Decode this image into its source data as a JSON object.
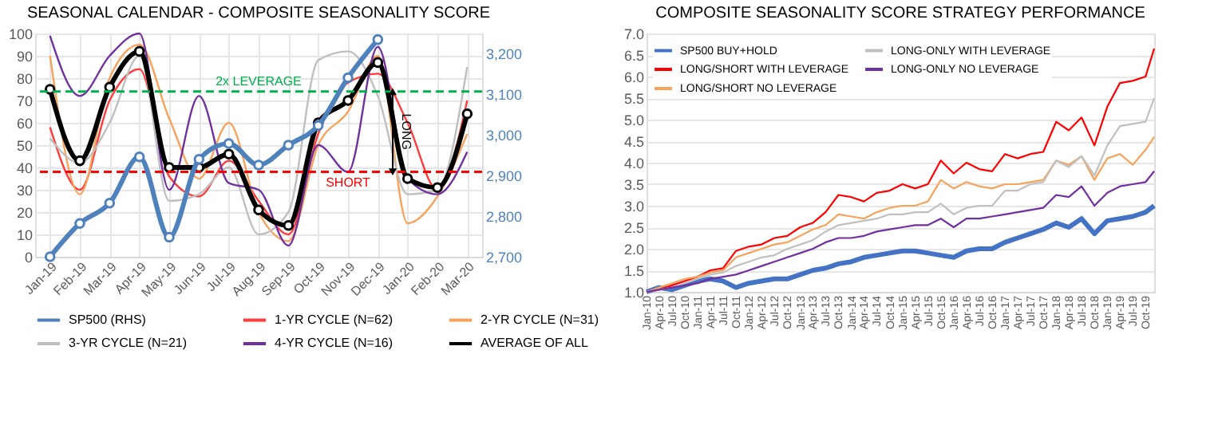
{
  "chart_data": [
    {
      "type": "line",
      "title": "SEASONAL CALENDAR - COMPOSITE SEASONALITY SCORE",
      "categories": [
        "Jan-19",
        "Feb-19",
        "Mar-19",
        "Apr-19",
        "May-19",
        "Jun-19",
        "Jul-19",
        "Aug-19",
        "Sep-19",
        "Oct-19",
        "Nov-19",
        "Dec-19",
        "Jan-20",
        "Feb-20",
        "Mar-20"
      ],
      "series": [
        {
          "name": "SP500 (RHS)",
          "color": "#4f81bd",
          "axis": "y2",
          "marker": "circle",
          "values": [
            2700,
            2782,
            2832,
            2946,
            2748,
            2940,
            2979,
            2926,
            2975,
            3023,
            3141,
            3235,
            null,
            null,
            null
          ]
        },
        {
          "name": "1-YR CYCLE (N=62)",
          "color": "#ff3b3b",
          "values": [
            58,
            30,
            70,
            84,
            36,
            27,
            43,
            25,
            10,
            55,
            78,
            82,
            60,
            30,
            70
          ]
        },
        {
          "name": "2-YR CYCLE (N=31)",
          "color": "#f7a35c",
          "values": [
            90,
            28,
            80,
            95,
            62,
            35,
            60,
            20,
            7,
            50,
            65,
            90,
            15,
            27,
            55
          ]
        },
        {
          "name": "3-YR CYCLE (N=21)",
          "color": "#bfbfbf",
          "values": [
            53,
            42,
            60,
            90,
            25,
            28,
            40,
            10,
            20,
            88,
            92,
            72,
            28,
            30,
            85
          ]
        },
        {
          "name": "4-YR CYCLE (N=16)",
          "color": "#7030a0",
          "values": [
            99,
            72,
            90,
            100,
            30,
            72,
            33,
            30,
            5,
            50,
            38,
            94,
            35,
            28,
            47
          ]
        },
        {
          "name": "AVERAGE OF ALL",
          "color": "#000000",
          "marker": "circle",
          "values": [
            75,
            43,
            76,
            92,
            40,
            40,
            46,
            21,
            14,
            60,
            70,
            87,
            35,
            31,
            64
          ]
        }
      ],
      "ylim": [
        0,
        100
      ],
      "yticks": [
        0,
        10,
        20,
        30,
        40,
        50,
        60,
        70,
        80,
        90,
        100
      ],
      "y2lim": [
        2700,
        3250
      ],
      "y2ticks": [
        {
          "value": 2700,
          "label": "2,700"
        },
        {
          "value": 2800,
          "label": "2,800"
        },
        {
          "value": 2900,
          "label": "2,900"
        },
        {
          "value": 3000,
          "label": "3,000"
        },
        {
          "value": 3100,
          "label": "3,100"
        },
        {
          "value": 3200,
          "label": "3,200"
        }
      ],
      "ref_lines": [
        {
          "axis": "y",
          "value": 74,
          "label": "2x LEVERAGE",
          "color": "#00b050",
          "line_style": "dashed"
        },
        {
          "axis": "y",
          "value": 38,
          "label": "SHORT",
          "color": "#ff0000",
          "line_style": "dashed"
        }
      ],
      "annotations": [
        "LONG"
      ],
      "grid": true,
      "legend": "bottom"
    },
    {
      "type": "line",
      "title": "COMPOSITE SEASONALITY SCORE STRATEGY PERFORMANCE",
      "x": [
        "2010-01",
        "2010-04",
        "2010-07",
        "2010-10",
        "2011-01",
        "2011-04",
        "2011-07",
        "2011-10",
        "2012-01",
        "2012-04",
        "2012-07",
        "2012-10",
        "2013-01",
        "2013-04",
        "2013-07",
        "2013-10",
        "2014-01",
        "2014-04",
        "2014-07",
        "2014-10",
        "2015-01",
        "2015-04",
        "2015-07",
        "2015-10",
        "2016-01",
        "2016-04",
        "2016-07",
        "2016-10",
        "2017-01",
        "2017-04",
        "2017-07",
        "2017-10",
        "2018-01",
        "2018-04",
        "2018-07",
        "2018-10",
        "2019-01",
        "2019-04",
        "2019-07",
        "2019-10",
        "2019-12"
      ],
      "series": [
        {
          "name": "SP500 BUY+HOLD",
          "color": "#4472c4",
          "values": [
            1.0,
            1.1,
            1.05,
            1.15,
            1.25,
            1.3,
            1.25,
            1.1,
            1.2,
            1.25,
            1.3,
            1.3,
            1.4,
            1.5,
            1.55,
            1.65,
            1.7,
            1.8,
            1.85,
            1.9,
            1.95,
            1.95,
            1.9,
            1.85,
            1.8,
            1.95,
            2.0,
            2.0,
            2.15,
            2.25,
            2.35,
            2.45,
            2.6,
            2.5,
            2.7,
            2.35,
            2.65,
            2.7,
            2.75,
            2.85,
            3.0
          ]
        },
        {
          "name": "LONG/SHORT WITH LEVERAGE",
          "color": "#ff0000",
          "values": [
            1.0,
            1.05,
            1.15,
            1.25,
            1.35,
            1.5,
            1.55,
            1.95,
            2.05,
            2.1,
            2.25,
            2.3,
            2.5,
            2.6,
            2.85,
            3.25,
            3.2,
            3.1,
            3.3,
            3.35,
            3.5,
            3.4,
            3.5,
            4.05,
            3.75,
            4.0,
            3.85,
            3.8,
            4.2,
            4.1,
            4.2,
            4.25,
            4.95,
            4.75,
            5.05,
            4.4,
            5.3,
            5.85,
            5.9,
            6.0,
            6.65
          ]
        },
        {
          "name": "LONG/SHORT NO LEVERAGE",
          "color": "#f7a35c",
          "values": [
            1.0,
            1.1,
            1.2,
            1.3,
            1.35,
            1.45,
            1.5,
            1.8,
            1.9,
            2.0,
            2.1,
            2.15,
            2.3,
            2.45,
            2.55,
            2.8,
            2.75,
            2.7,
            2.85,
            2.95,
            3.0,
            3.0,
            3.1,
            3.6,
            3.4,
            3.55,
            3.45,
            3.4,
            3.5,
            3.5,
            3.55,
            3.6,
            4.05,
            3.95,
            4.15,
            3.6,
            4.1,
            4.2,
            3.95,
            4.3,
            4.6
          ]
        },
        {
          "name": "LONG-ONLY WITH LEVERAGE",
          "color": "#c0c0c0",
          "values": [
            1.0,
            1.05,
            1.1,
            1.2,
            1.3,
            1.4,
            1.45,
            1.6,
            1.7,
            1.8,
            1.85,
            2.0,
            2.1,
            2.2,
            2.4,
            2.55,
            2.6,
            2.65,
            2.7,
            2.8,
            2.8,
            2.85,
            2.85,
            3.05,
            2.8,
            2.95,
            3.0,
            3.0,
            3.35,
            3.35,
            3.5,
            3.55,
            4.05,
            3.9,
            4.15,
            3.7,
            4.4,
            4.85,
            4.9,
            4.95,
            5.5
          ]
        },
        {
          "name": "LONG-ONLY NO LEVERAGE",
          "color": "#7030a0",
          "values": [
            1.0,
            1.05,
            1.1,
            1.15,
            1.2,
            1.3,
            1.35,
            1.4,
            1.5,
            1.6,
            1.7,
            1.8,
            1.9,
            2.0,
            2.15,
            2.25,
            2.25,
            2.3,
            2.4,
            2.45,
            2.5,
            2.55,
            2.55,
            2.7,
            2.5,
            2.7,
            2.7,
            2.75,
            2.8,
            2.85,
            2.9,
            2.95,
            3.25,
            3.2,
            3.45,
            3.0,
            3.3,
            3.45,
            3.5,
            3.55,
            3.8
          ]
        }
      ],
      "xlim": [
        "2010-01",
        "2019-12"
      ],
      "xticks": [
        {
          "value": "2010-01",
          "label": "Jan-10"
        },
        {
          "value": "2010-04",
          "label": "Apr-10"
        },
        {
          "value": "2010-07",
          "label": "Jul-10"
        },
        {
          "value": "2010-10",
          "label": "Oct-10"
        },
        {
          "value": "2011-01",
          "label": "Jan-11"
        },
        {
          "value": "2011-04",
          "label": "Apr-11"
        },
        {
          "value": "2011-07",
          "label": "Jul-11"
        },
        {
          "value": "2011-10",
          "label": "Oct-11"
        },
        {
          "value": "2012-01",
          "label": "Jan-12"
        },
        {
          "value": "2012-04",
          "label": "Apr-12"
        },
        {
          "value": "2012-07",
          "label": "Jul-12"
        },
        {
          "value": "2012-10",
          "label": "Oct-12"
        },
        {
          "value": "2013-01",
          "label": "Jan-13"
        },
        {
          "value": "2013-04",
          "label": "Apr-13"
        },
        {
          "value": "2013-07",
          "label": "Jul-13"
        },
        {
          "value": "2013-10",
          "label": "Oct-13"
        },
        {
          "value": "2014-01",
          "label": "Jan-14"
        },
        {
          "value": "2014-04",
          "label": "Apr-14"
        },
        {
          "value": "2014-07",
          "label": "Jul-14"
        },
        {
          "value": "2014-10",
          "label": "Oct-14"
        },
        {
          "value": "2015-01",
          "label": "Jan-15"
        },
        {
          "value": "2015-04",
          "label": "Apr-15"
        },
        {
          "value": "2015-07",
          "label": "Jul-15"
        },
        {
          "value": "2015-10",
          "label": "Oct-15"
        },
        {
          "value": "2016-01",
          "label": "Jan-16"
        },
        {
          "value": "2016-04",
          "label": "Apr-16"
        },
        {
          "value": "2016-07",
          "label": "Jul-16"
        },
        {
          "value": "2016-10",
          "label": "Oct-16"
        },
        {
          "value": "2017-01",
          "label": "Jan-17"
        },
        {
          "value": "2017-04",
          "label": "Apr-17"
        },
        {
          "value": "2017-07",
          "label": "Jul-17"
        },
        {
          "value": "2017-10",
          "label": "Oct-17"
        },
        {
          "value": "2018-01",
          "label": "Jan-18"
        },
        {
          "value": "2018-04",
          "label": "Apr-18"
        },
        {
          "value": "2018-07",
          "label": "Jul-18"
        },
        {
          "value": "2018-10",
          "label": "Oct-18"
        },
        {
          "value": "2019-01",
          "label": "Jan-19"
        },
        {
          "value": "2019-04",
          "label": "Apr-19"
        },
        {
          "value": "2019-07",
          "label": "Jul-19"
        },
        {
          "value": "2019-10",
          "label": "Oct-19"
        }
      ],
      "ylim": [
        1,
        7
      ],
      "yticks": [
        {
          "value": 1,
          "label": "1.0"
        },
        {
          "value": 1.5,
          "label": "1.5"
        },
        {
          "value": 2,
          "label": "2.0"
        },
        {
          "value": 2.5,
          "label": "2.5"
        },
        {
          "value": 3,
          "label": "3.0"
        },
        {
          "value": 3.5,
          "label": "3.5"
        },
        {
          "value": 4,
          "label": "4.0"
        },
        {
          "value": 4.5,
          "label": "4.5"
        },
        {
          "value": 5,
          "label": "5.0"
        },
        {
          "value": 5.5,
          "label": "5.5"
        },
        {
          "value": 6,
          "label": "6.0"
        },
        {
          "value": 6.5,
          "label": "6.5"
        },
        {
          "value": 7,
          "label": "7.0"
        }
      ],
      "grid": "y",
      "legend": "top left"
    }
  ]
}
